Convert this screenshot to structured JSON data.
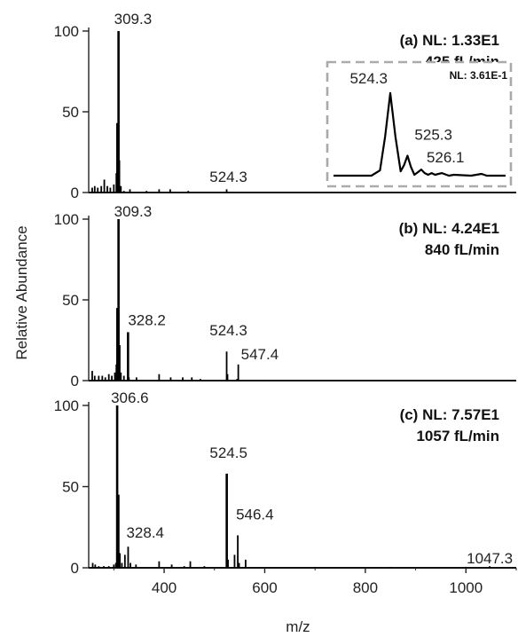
{
  "chart_data": {
    "type": "line",
    "subtype": "mass-spectrum",
    "xlabel": "m/z",
    "ylabel": "Relative Abundance",
    "xlim": [
      250,
      1100
    ],
    "ylim": [
      0,
      100
    ],
    "x_ticks": [
      400,
      600,
      800,
      1000
    ],
    "y_ticks": [
      0,
      50,
      100
    ],
    "grid": false,
    "panels": [
      {
        "id": "a",
        "label_line1": "(a)  NL: 1.33E1",
        "label_line2": "425 fL/min",
        "peaks": [
          {
            "x": 257,
            "y": 3
          },
          {
            "x": 262,
            "y": 4
          },
          {
            "x": 268,
            "y": 3
          },
          {
            "x": 275,
            "y": 4
          },
          {
            "x": 281,
            "y": 8
          },
          {
            "x": 287,
            "y": 4
          },
          {
            "x": 293,
            "y": 3
          },
          {
            "x": 300,
            "y": 5
          },
          {
            "x": 305,
            "y": 12
          },
          {
            "x": 307,
            "y": 43
          },
          {
            "x": 309.3,
            "y": 100
          },
          {
            "x": 311,
            "y": 20
          },
          {
            "x": 314,
            "y": 4
          },
          {
            "x": 320,
            "y": 1
          },
          {
            "x": 332,
            "y": 2
          },
          {
            "x": 365,
            "y": 1
          },
          {
            "x": 390,
            "y": 2
          },
          {
            "x": 412,
            "y": 2
          },
          {
            "x": 448,
            "y": 1
          },
          {
            "x": 524.3,
            "y": 2
          },
          {
            "x": 700,
            "y": 0.4
          },
          {
            "x": 900,
            "y": 0.4
          }
        ],
        "annotations": [
          {
            "text": "309.3",
            "x": 309.3
          },
          {
            "text": "524.3",
            "x": 524.3
          }
        ],
        "inset": {
          "nl": "NL: 3.61E-1",
          "xlim": [
            521,
            531
          ],
          "ylim": [
            0,
            100
          ],
          "profile": [
            {
              "x": 521.0,
              "y": 0
            },
            {
              "x": 523.2,
              "y": 0
            },
            {
              "x": 523.7,
              "y": 6
            },
            {
              "x": 524.0,
              "y": 45
            },
            {
              "x": 524.3,
              "y": 95
            },
            {
              "x": 524.6,
              "y": 45
            },
            {
              "x": 524.9,
              "y": 5
            },
            {
              "x": 525.1,
              "y": 12
            },
            {
              "x": 525.3,
              "y": 23
            },
            {
              "x": 525.5,
              "y": 10
            },
            {
              "x": 525.7,
              "y": 1
            },
            {
              "x": 525.9,
              "y": 4
            },
            {
              "x": 526.1,
              "y": 7
            },
            {
              "x": 526.3,
              "y": 3
            },
            {
              "x": 526.5,
              "y": 1
            },
            {
              "x": 526.7,
              "y": 3
            },
            {
              "x": 526.9,
              "y": 1
            },
            {
              "x": 527.3,
              "y": 3
            },
            {
              "x": 527.7,
              "y": 0
            },
            {
              "x": 528.0,
              "y": 1
            },
            {
              "x": 529.0,
              "y": 0
            },
            {
              "x": 529.6,
              "y": 2
            },
            {
              "x": 529.9,
              "y": 0
            },
            {
              "x": 531.0,
              "y": 0
            }
          ],
          "annotations": [
            {
              "text": "524.3",
              "x": 524.3
            },
            {
              "text": "525.3",
              "x": 525.3
            },
            {
              "text": "526.1",
              "x": 526.1
            }
          ]
        }
      },
      {
        "id": "b",
        "label_line1": "(b)  NL: 4.24E1",
        "label_line2": "840 fL/min",
        "peaks": [
          {
            "x": 257,
            "y": 6
          },
          {
            "x": 262,
            "y": 3
          },
          {
            "x": 270,
            "y": 3
          },
          {
            "x": 277,
            "y": 3
          },
          {
            "x": 283,
            "y": 2
          },
          {
            "x": 290,
            "y": 4
          },
          {
            "x": 296,
            "y": 3
          },
          {
            "x": 302,
            "y": 5
          },
          {
            "x": 305,
            "y": 10
          },
          {
            "x": 307,
            "y": 45
          },
          {
            "x": 309.3,
            "y": 100
          },
          {
            "x": 311,
            "y": 22
          },
          {
            "x": 314,
            "y": 5
          },
          {
            "x": 320,
            "y": 3
          },
          {
            "x": 328.2,
            "y": 30
          },
          {
            "x": 330,
            "y": 2
          },
          {
            "x": 345,
            "y": 2
          },
          {
            "x": 390,
            "y": 4
          },
          {
            "x": 413,
            "y": 2
          },
          {
            "x": 437,
            "y": 2
          },
          {
            "x": 455,
            "y": 2
          },
          {
            "x": 472,
            "y": 1
          },
          {
            "x": 524.3,
            "y": 18
          },
          {
            "x": 526,
            "y": 4
          },
          {
            "x": 545,
            "y": 1
          },
          {
            "x": 547.4,
            "y": 10
          },
          {
            "x": 600,
            "y": 0.5
          }
        ],
        "annotations": [
          {
            "text": "309.3",
            "x": 309.3
          },
          {
            "text": "328.2",
            "x": 328.2
          },
          {
            "text": "524.3",
            "x": 524.3
          },
          {
            "text": "547.4",
            "x": 547.4
          }
        ]
      },
      {
        "id": "c",
        "label_line1": "(c)  NL: 7.57E1",
        "label_line2": "1057 fL/min",
        "peaks": [
          {
            "x": 258,
            "y": 3
          },
          {
            "x": 263,
            "y": 2
          },
          {
            "x": 270,
            "y": 1
          },
          {
            "x": 280,
            "y": 1
          },
          {
            "x": 290,
            "y": 1
          },
          {
            "x": 300,
            "y": 2
          },
          {
            "x": 304,
            "y": 3
          },
          {
            "x": 306.6,
            "y": 100
          },
          {
            "x": 309,
            "y": 45
          },
          {
            "x": 312,
            "y": 9
          },
          {
            "x": 316,
            "y": 3
          },
          {
            "x": 322,
            "y": 8
          },
          {
            "x": 328.4,
            "y": 13
          },
          {
            "x": 333,
            "y": 3
          },
          {
            "x": 344,
            "y": 2
          },
          {
            "x": 390,
            "y": 4
          },
          {
            "x": 415,
            "y": 2
          },
          {
            "x": 440,
            "y": 1
          },
          {
            "x": 452,
            "y": 4
          },
          {
            "x": 480,
            "y": 1
          },
          {
            "x": 524.5,
            "y": 58
          },
          {
            "x": 527,
            "y": 5
          },
          {
            "x": 540,
            "y": 8
          },
          {
            "x": 546.4,
            "y": 20
          },
          {
            "x": 549,
            "y": 3
          },
          {
            "x": 562,
            "y": 5
          },
          {
            "x": 700,
            "y": 0.5
          },
          {
            "x": 850,
            "y": 0.5
          },
          {
            "x": 1000,
            "y": 0.6
          },
          {
            "x": 1047.3,
            "y": 1
          }
        ],
        "annotations": [
          {
            "text": "306.6",
            "x": 306.6
          },
          {
            "text": "328.4",
            "x": 328.4
          },
          {
            "text": "524.5",
            "x": 524.5
          },
          {
            "text": "546.4",
            "x": 546.4
          },
          {
            "text": "1047.3",
            "x": 1047.3
          }
        ]
      }
    ]
  }
}
